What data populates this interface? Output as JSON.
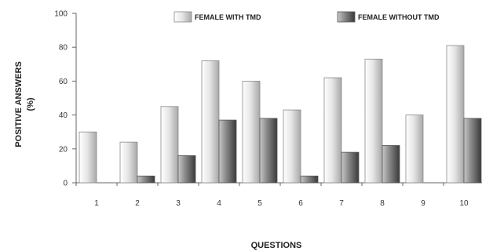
{
  "chart_data": {
    "type": "bar",
    "categories": [
      "1",
      "2",
      "3",
      "4",
      "5",
      "6",
      "7",
      "8",
      "9",
      "10"
    ],
    "series": [
      {
        "name": "FEMALE WITH TMD",
        "values": [
          30,
          24,
          45,
          72,
          60,
          43,
          62,
          73,
          40,
          81
        ],
        "color": "#d8d8d8"
      },
      {
        "name": "FEMALE WITHOUT TMD",
        "values": [
          0,
          4,
          16,
          37,
          38,
          4,
          18,
          22,
          0,
          38
        ],
        "color": "#7a7a7a"
      }
    ],
    "y_ticks": [
      "0",
      "20",
      "40",
      "60",
      "80",
      "100"
    ],
    "ylim": [
      0,
      100
    ],
    "xlabel": "QUESTIONS",
    "ylabel_line1": "POSITIVE ANSWERS",
    "ylabel_line2": "(%)",
    "grid": false,
    "legend_position": "top-right"
  }
}
